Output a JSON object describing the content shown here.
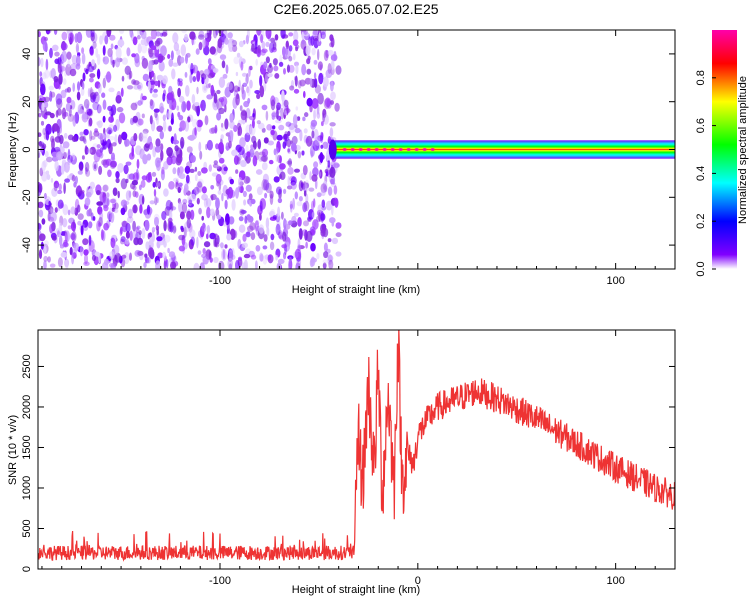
{
  "figure_title": "C2E6.2025.065.07.02.E25",
  "chart_data": [
    {
      "type": "heatmap",
      "title": "",
      "xlabel": "Height of straight line (km)",
      "ylabel": "Frequency (Hz)",
      "xlim": [
        -192,
        130
      ],
      "ylim": [
        -50,
        50
      ],
      "xticks": [
        -100,
        0,
        100
      ],
      "xticklabels": [
        "-100",
        "",
        "100"
      ],
      "yticks": [
        -40,
        -20,
        0,
        20,
        40
      ],
      "yticklabels": [
        "-40",
        "-20",
        "0",
        "20",
        "40"
      ],
      "grid": false,
      "regions": [
        {
          "x": [
            -192,
            -42
          ],
          "y": [
            -50,
            50
          ],
          "amplitude": 0.1,
          "pattern": "noise"
        },
        {
          "x": [
            -42,
            130
          ],
          "y": [
            -3,
            3
          ],
          "amplitude": 0.9,
          "pattern": "narrow band at 0 Hz"
        }
      ],
      "colorbar": {
        "label": "Normalized spectral amplitude",
        "range": [
          0,
          1
        ],
        "ticks": [
          0.0,
          0.2,
          0.4,
          0.6,
          0.8
        ],
        "ticklabels": [
          "0.0",
          "0.2",
          "0.4",
          "0.6",
          "0.8"
        ],
        "colors": [
          "#ffffff",
          "#8000ff",
          "#0000ff",
          "#00ffff",
          "#00ff00",
          "#ffff00",
          "#ff0000",
          "#ff00aa"
        ]
      }
    },
    {
      "type": "line",
      "title": "",
      "xlabel": "Height of straight line (km)",
      "ylabel": "SNR (10 * v/v)",
      "xlim": [
        -192,
        130
      ],
      "ylim": [
        0,
        2950
      ],
      "xticks": [
        -100,
        0,
        100
      ],
      "xticklabels": [
        "-100",
        "0",
        "100"
      ],
      "yticks": [
        0,
        500,
        1000,
        1500,
        2000,
        2500
      ],
      "yticklabels": [
        "0",
        "500",
        "1000",
        "1500",
        "2000",
        "2500"
      ],
      "grid": false,
      "color": "#ee3333",
      "series": [
        {
          "name": "",
          "x": [
            -192,
            -150,
            -100,
            -60,
            -45,
            -32,
            -30,
            -28,
            -25,
            -22,
            -20,
            -18,
            -15,
            -12,
            -10,
            -8,
            -5,
            -2,
            0,
            5,
            10,
            20,
            30,
            40,
            60,
            80,
            100,
            120,
            130
          ],
          "y": [
            200,
            200,
            200,
            200,
            200,
            200,
            1700,
            1000,
            2300,
            1200,
            2500,
            900,
            2200,
            1000,
            2900,
            1100,
            1400,
            1300,
            1650,
            1850,
            2000,
            2100,
            2200,
            2100,
            1850,
            1550,
            1250,
            1000,
            900
          ]
        }
      ]
    }
  ]
}
